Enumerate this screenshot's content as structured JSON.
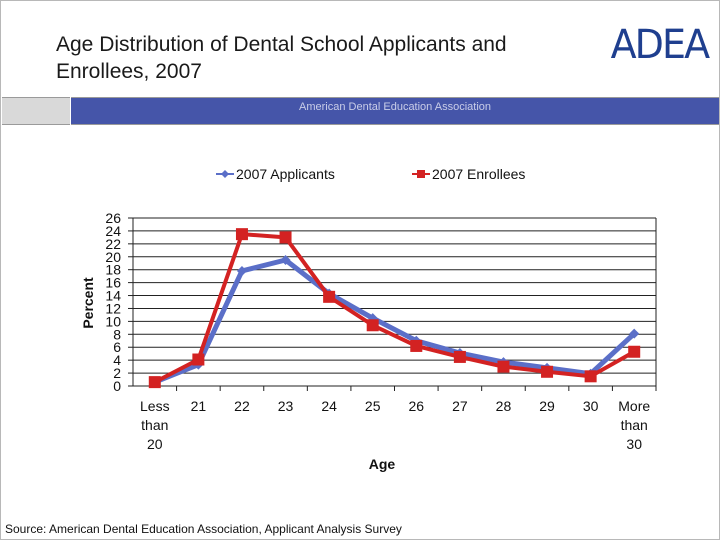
{
  "slide": {
    "title": "Age Distribution of Dental School Applicants and Enrollees, 2007",
    "logo_text": "ADEA",
    "banner_text": "American Dental Education Association",
    "source": "Source: American Dental Education Association, Applicant Analysis Survey"
  },
  "colors": {
    "applicants": "#5b6fc8",
    "enrollees": "#d32222",
    "banner": "#4555a9"
  },
  "chart_data": {
    "type": "line",
    "title": "",
    "xlabel": "Age",
    "ylabel": "Percent",
    "ylim": [
      0,
      26
    ],
    "yticks": [
      "0",
      "2",
      "4",
      "6",
      "8",
      "10",
      "12",
      "14",
      "16",
      "18",
      "20",
      "22",
      "24",
      "26"
    ],
    "grid": true,
    "legend_position": "top",
    "categories": [
      [
        "Less",
        "than",
        "20"
      ],
      [
        "21"
      ],
      [
        "22"
      ],
      [
        "23"
      ],
      [
        "24"
      ],
      [
        "25"
      ],
      [
        "26"
      ],
      [
        "27"
      ],
      [
        "28"
      ],
      [
        "29"
      ],
      [
        "30"
      ],
      [
        "More",
        "than",
        "30"
      ]
    ],
    "series": [
      {
        "name": "2007 Applicants",
        "marker": "diamond",
        "color": "#5b6fc8",
        "values": [
          0.6,
          3.3,
          17.8,
          19.5,
          14.3,
          10.5,
          7.0,
          5.1,
          3.7,
          2.8,
          1.9,
          8.1
        ]
      },
      {
        "name": "2007 Enrollees",
        "marker": "square",
        "color": "#d32222",
        "values": [
          0.6,
          4.1,
          23.5,
          23.0,
          13.8,
          9.4,
          6.2,
          4.5,
          3.0,
          2.2,
          1.5,
          5.3
        ]
      }
    ]
  }
}
